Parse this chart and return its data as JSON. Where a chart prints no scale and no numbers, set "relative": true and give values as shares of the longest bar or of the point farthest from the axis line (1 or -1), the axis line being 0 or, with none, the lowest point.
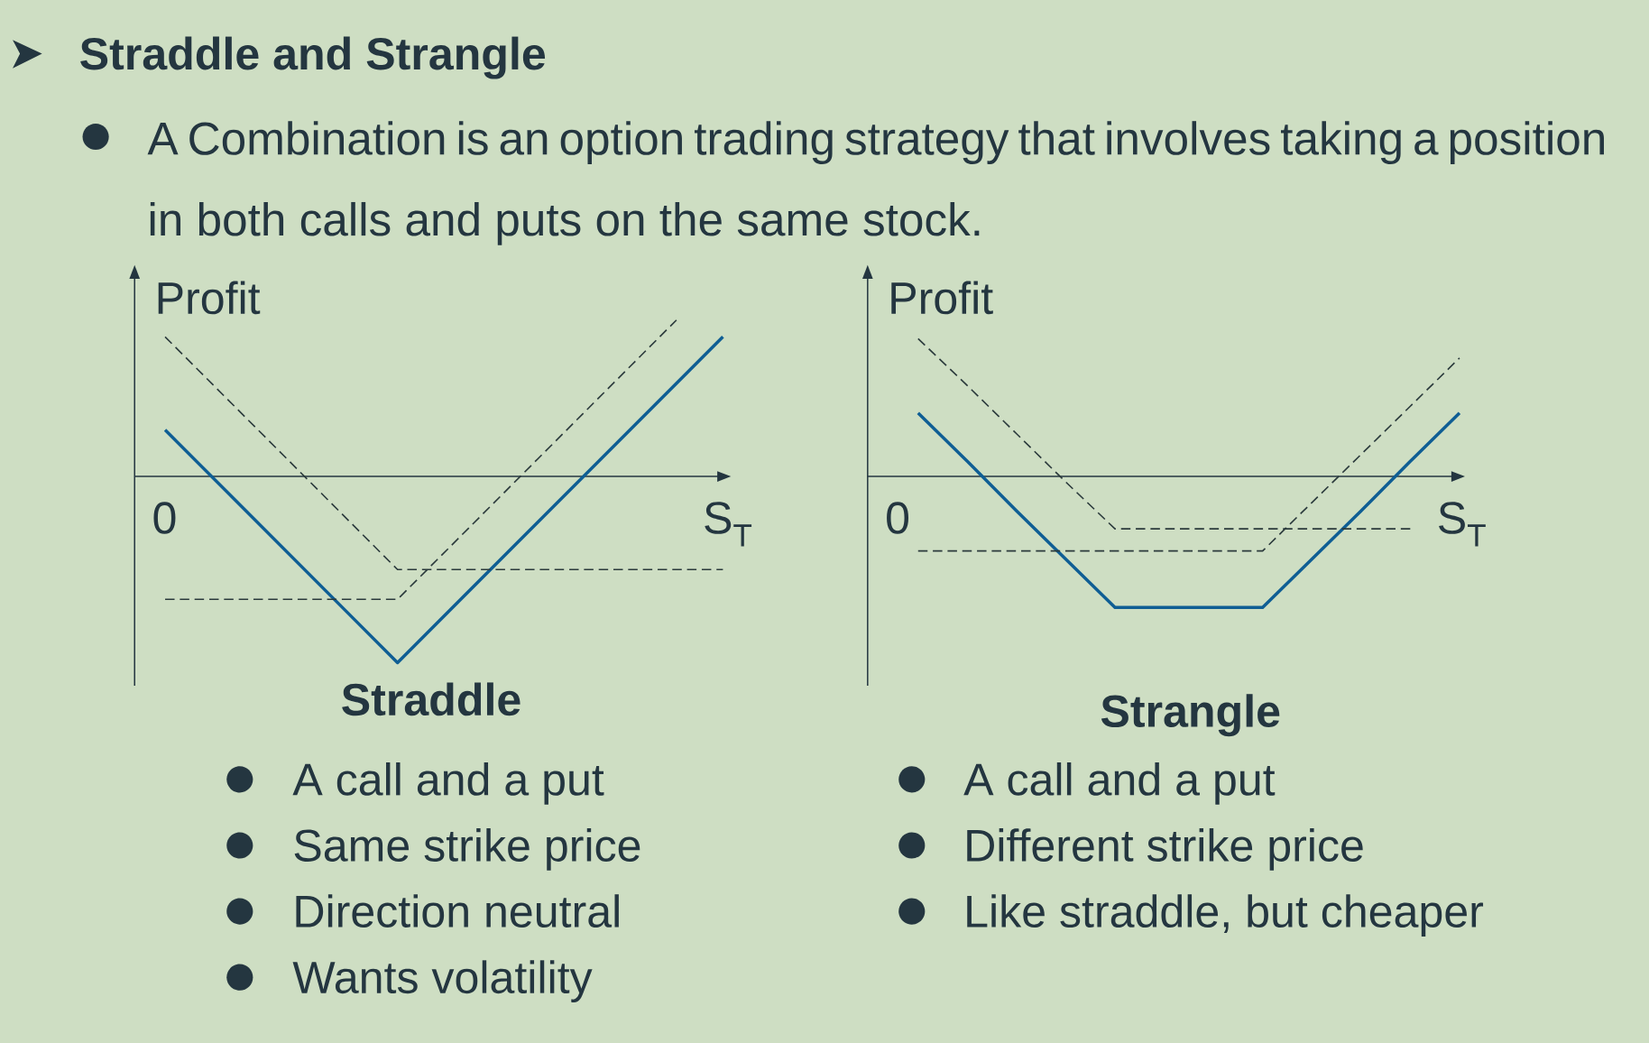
{
  "chart_data": [
    {
      "type": "other",
      "title": "Straddle and Strangle",
      "annotations": [
        "A Combination is an option trading strategy that involves taking a position in both calls and puts on the same stock."
      ]
    },
    {
      "type": "line",
      "title": "Straddle",
      "xlabel": "S$_{T}$",
      "ylabel": "Profit",
      "relative": true,
      "categories": [
        null,
        null,
        null,
        null,
        null,
        null,
        null,
        null,
        null,
        null,
        null,
        null,
        null
      ],
      "series": [
        {
          "color": "#0f5e94",
          "line_style": "solid",
          "values": [
            0.25,
            0,
            -0.25,
            -0.5,
            -0.75,
            -1,
            -0.75,
            -0.5,
            -0.25,
            0,
            0.25,
            0.5,
            0.75
          ]
        },
        {
          "color": "#2b3a3c",
          "line_style": "dashed",
          "values": [
            0.75,
            0.5,
            0.25,
            0,
            -0.25,
            -0.5,
            -0.5,
            -0.5,
            -0.5,
            -0.5,
            -0.5,
            -0.5,
            -0.5
          ]
        },
        {
          "color": "#2b3a3c",
          "line_style": "dashed",
          "values": [
            -0.66,
            -0.66,
            -0.66,
            -0.66,
            -0.66,
            -0.66,
            -0.41,
            -0.16,
            0.09,
            0.34,
            0.59,
            0.84,
            null
          ]
        }
      ],
      "annotations": [
        "0",
        "A call and a put",
        "Same strike price",
        "Direction neutral",
        "Wants volatility"
      ]
    },
    {
      "type": "line",
      "title": "Strangle",
      "xlabel": "S$_{T}$",
      "ylabel": "Profit",
      "relative": true,
      "categories": [
        null,
        null,
        null,
        null,
        null,
        null,
        null,
        null,
        null,
        null,
        null,
        null
      ],
      "series": [
        {
          "color": "#0f5e94",
          "line_style": "solid",
          "values": [
            0.46,
            0.11,
            -0.25,
            -0.6,
            -0.95,
            -0.95,
            -0.95,
            -0.95,
            -0.6,
            -0.25,
            0.11,
            0.46
          ]
        },
        {
          "color": "#2b3a3c",
          "line_style": "dashed",
          "values": [
            1,
            0.66,
            0.31,
            -0.04,
            -0.38,
            -0.38,
            -0.38,
            -0.38,
            -0.38,
            -0.38,
            -0.38,
            null
          ]
        },
        {
          "color": "#2b3a3c",
          "line_style": "dashed",
          "values": [
            -0.54,
            -0.54,
            -0.54,
            -0.54,
            -0.54,
            -0.54,
            -0.54,
            -0.54,
            -0.19,
            0.16,
            0.51,
            0.86
          ]
        }
      ],
      "annotations": [
        "0",
        "A call and a put",
        "Different strike price",
        "Like straddle, but cheaper"
      ]
    }
  ]
}
